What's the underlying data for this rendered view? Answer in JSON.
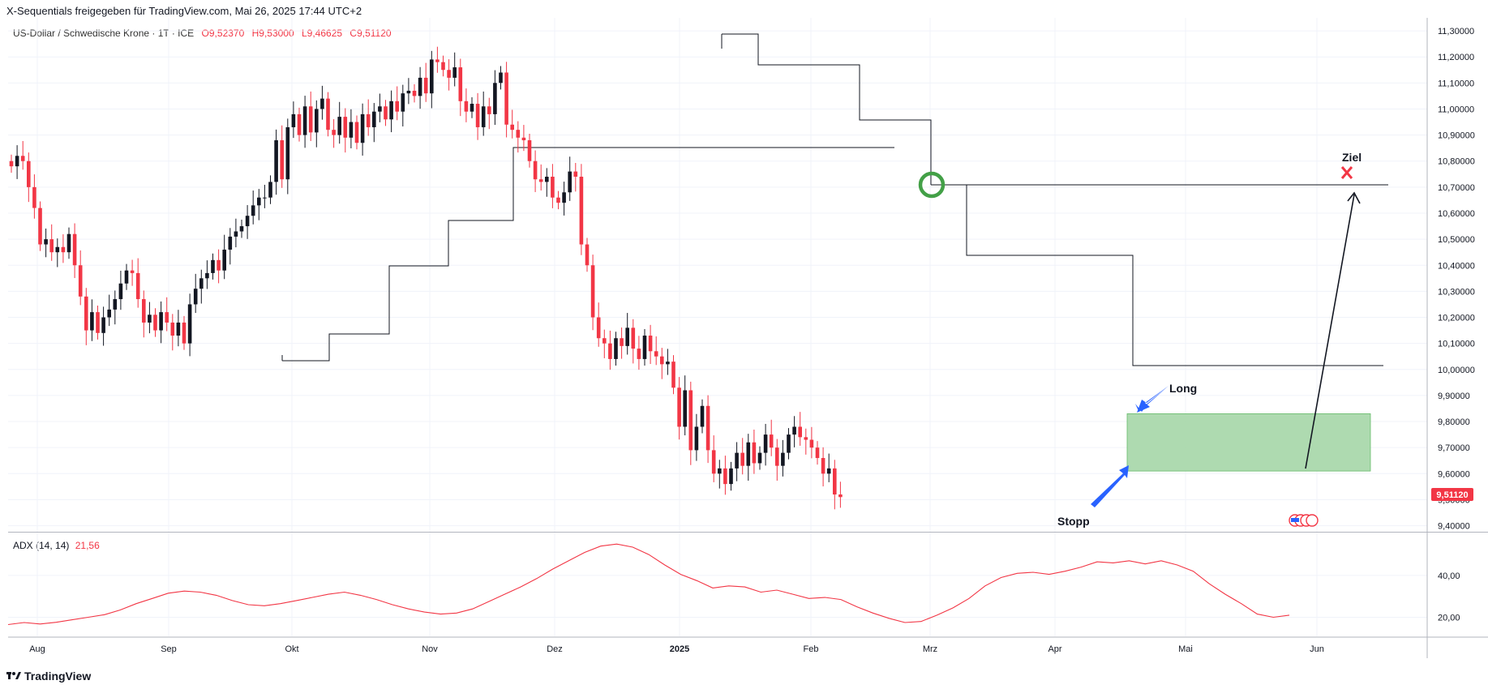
{
  "header": {
    "text": "X-Sequentials freigegeben für TradingView.com, Mai 26, 2025 17:44 UTC+2"
  },
  "legend": {
    "symbol": "US-Dollar / Schwedische Krone · 1T · ICE",
    "open": "O9,52370",
    "high": "H9,53000",
    "low": "L9,46625",
    "close": "C9,51120"
  },
  "adx": {
    "label": "ADX (14, 14)",
    "value": "21,56"
  },
  "footer": {
    "brand": "TradingView"
  },
  "price_label": "9,51120",
  "colors": {
    "up": "#131722",
    "down": "#f23645",
    "adx": "#f23645",
    "box": "#a5d6a7",
    "circle": "#43a047",
    "arrow_blue": "#2962ff"
  },
  "annotations": {
    "long": "Long",
    "stopp": "Stopp",
    "ziel": "Ziel"
  },
  "chart_data": [
    {
      "type": "candlestick",
      "title": "",
      "xlabel": "",
      "ylabel": "",
      "x_ticks": [
        "Aug",
        "Sep",
        "Okt",
        "Nov",
        "Dez",
        "2025",
        "Feb",
        "Mrz",
        "Apr",
        "Mai",
        "Jun"
      ],
      "y_ticks": [
        "11,30000",
        "11,20000",
        "11,10000",
        "11,00000",
        "10,90000",
        "10,80000",
        "10,70000",
        "10,60000",
        "10,50000",
        "10,40000",
        "10,30000",
        "10,20000",
        "10,10000",
        "10,00000",
        "9,90000",
        "9,80000",
        "9,70000",
        "9,60000",
        "9,50000",
        "9,40000"
      ],
      "ylim": [
        9.38,
        11.35
      ],
      "grid": true,
      "closes": [
        10.78,
        10.82,
        10.8,
        10.7,
        10.62,
        10.48,
        10.5,
        10.45,
        10.47,
        10.45,
        10.52,
        10.4,
        10.28,
        10.15,
        10.22,
        10.14,
        10.2,
        10.23,
        10.27,
        10.33,
        10.38,
        10.37,
        10.27,
        10.18,
        10.21,
        10.15,
        10.22,
        10.18,
        10.13,
        10.18,
        10.1,
        10.25,
        10.31,
        10.35,
        10.37,
        10.42,
        10.38,
        10.46,
        10.51,
        10.53,
        10.55,
        10.59,
        10.63,
        10.66,
        10.66,
        10.72,
        10.88,
        10.73,
        10.93,
        10.98,
        10.9,
        11.01,
        10.91,
        11.0,
        11.04,
        10.92,
        10.9,
        10.97,
        10.89,
        10.95,
        10.87,
        10.98,
        10.93,
        10.99,
        11.01,
        10.96,
        11.03,
        10.99,
        11.06,
        11.07,
        11.05,
        11.12,
        11.06,
        11.19,
        11.18,
        11.15,
        11.12,
        11.16,
        11.03,
        10.99,
        11.02,
        10.93,
        11.01,
        10.98,
        11.1,
        11.14,
        10.94,
        10.92,
        10.89,
        10.88,
        10.8,
        10.73,
        10.72,
        10.74,
        10.66,
        10.64,
        10.68,
        10.76,
        10.74,
        10.48,
        10.4,
        10.2,
        10.12,
        10.1,
        10.04,
        10.12,
        10.09,
        10.16,
        10.08,
        10.04,
        10.13,
        10.07,
        10.05,
        10.02,
        10.03,
        9.93,
        9.78,
        9.92,
        9.69,
        9.78,
        9.86,
        9.69,
        9.6,
        9.62,
        9.56,
        9.62,
        9.68,
        9.63,
        9.72,
        9.64,
        9.68,
        9.75,
        9.7,
        9.63,
        9.68,
        9.75,
        9.78,
        9.74,
        9.73,
        9.7,
        9.66,
        9.6,
        9.62,
        9.52,
        9.51
      ],
      "series": [
        {
          "name": "ADX (14, 14)",
          "values": [
            16.5,
            17.5,
            16.8,
            17.6,
            18.8,
            20.0,
            21.2,
            23.5,
            26.5,
            29.0,
            31.5,
            32.5,
            32.0,
            30.5,
            28.0,
            26.0,
            25.5,
            26.5,
            28.0,
            29.5,
            31.0,
            32.0,
            30.5,
            28.5,
            26.0,
            24.0,
            22.5,
            21.5,
            22.0,
            24.0,
            27.5,
            31.0,
            34.5,
            38.5,
            43.0,
            47.0,
            51.0,
            54.0,
            55.0,
            53.5,
            50.0,
            45.0,
            40.5,
            37.5,
            34.0,
            35.0,
            34.5,
            32.0,
            33.0,
            31.0,
            29.0,
            29.5,
            28.5,
            25.0,
            22.0,
            19.5,
            17.5,
            18.0,
            21.0,
            24.5,
            29.0,
            35.0,
            39.0,
            41.0,
            41.5,
            40.5,
            42.0,
            44.0,
            46.5,
            46.0,
            47.0,
            45.5,
            47.0,
            45.0,
            42.0,
            36.0,
            31.0,
            26.5,
            21.5,
            20.0,
            21.0
          ]
        }
      ],
      "boxes": [
        {
          "low": 9.61,
          "high": 9.83
        }
      ],
      "lines": [
        {
          "name": "ziel-line",
          "y": 10.73
        },
        {
          "name": "target-level",
          "y": 10.02
        }
      ]
    }
  ]
}
